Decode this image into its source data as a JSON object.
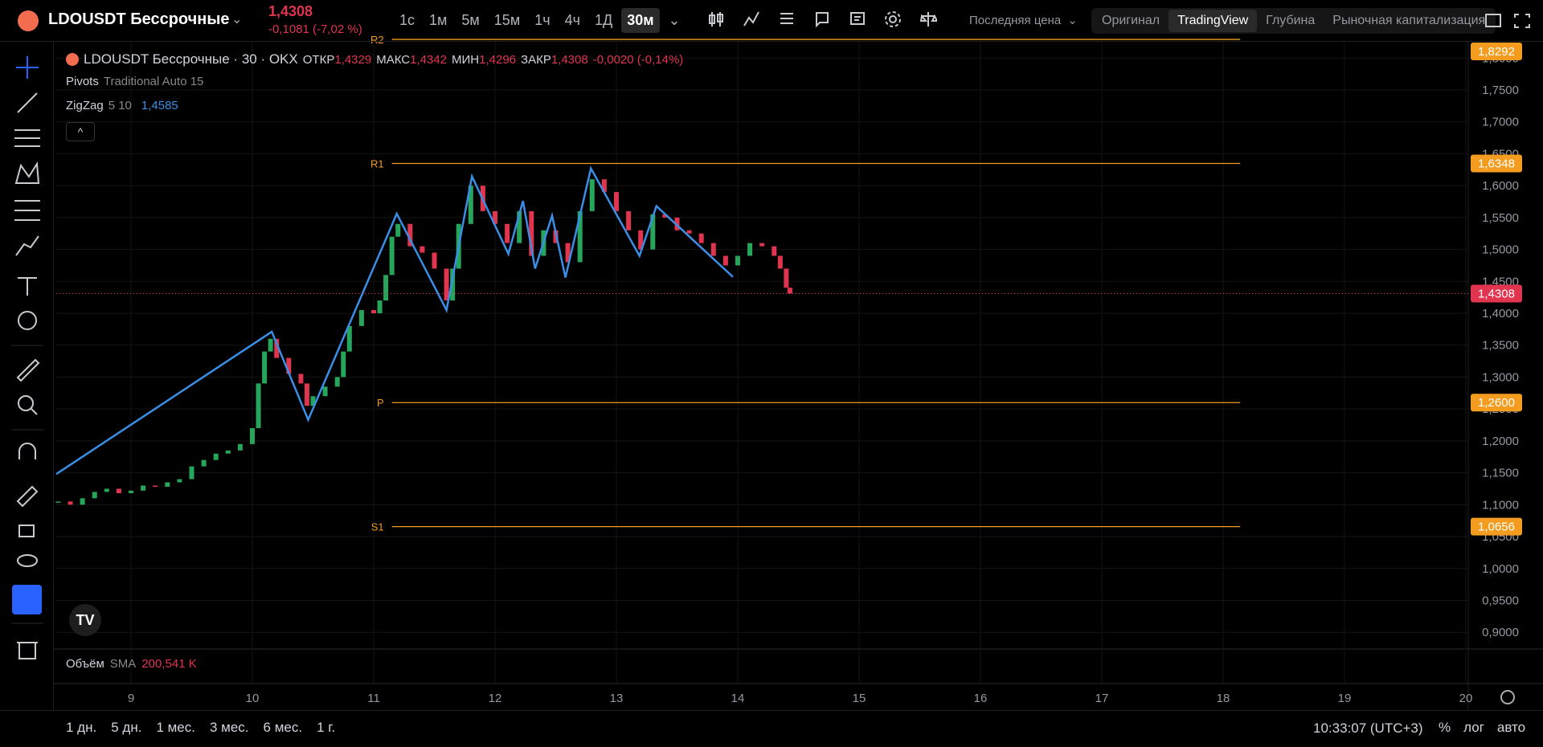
{
  "header": {
    "symbol": "LDOUSDT Бессрочные",
    "price": "1,4308",
    "change": "-0,1081 (-7,02 %)",
    "intervals": [
      "1с",
      "1м",
      "5м",
      "15м",
      "1ч",
      "4ч",
      "1Д",
      "30м"
    ],
    "active_interval": "30м",
    "price_type": "Последняя цена",
    "views": [
      "Оригинал",
      "TradingView",
      "Глубина",
      "Рыночная капитализация"
    ],
    "active_view": "TradingView"
  },
  "legend": {
    "title": "LDOUSDT Бессрочные · 30 · OKX",
    "ohlc": [
      {
        "label": "ОТКР",
        "value": "1,4329"
      },
      {
        "label": "МАКС",
        "value": "1,4342"
      },
      {
        "label": "МИН",
        "value": "1,4296"
      },
      {
        "label": "ЗАКР",
        "value": "1,4308"
      }
    ],
    "change": "-0,0020 (-0,14%)"
  },
  "indicators": [
    {
      "name": "Pivots",
      "params": "Traditional Auto 15"
    },
    {
      "name": "ZigZag",
      "params": "5 10",
      "value": "1,4585"
    }
  ],
  "chart": {
    "ylim": [
      0.8738,
      1.8255
    ],
    "xlim": [
      8.384,
      20.02
    ],
    "yticks": [
      {
        "value": 0.9,
        "label": "0,9000"
      },
      {
        "value": 0.95,
        "label": "0,9500"
      },
      {
        "value": 1.0,
        "label": "1,0000"
      },
      {
        "value": 1.05,
        "label": "1,0500"
      },
      {
        "value": 1.1,
        "label": "1,1000"
      },
      {
        "value": 1.15,
        "label": "1,1500"
      },
      {
        "value": 1.2,
        "label": "1,2000"
      },
      {
        "value": 1.25,
        "label": "1,2500"
      },
      {
        "value": 1.3,
        "label": "1,3000"
      },
      {
        "value": 1.35,
        "label": "1,3500"
      },
      {
        "value": 1.4,
        "label": "1,4000"
      },
      {
        "value": 1.45,
        "label": "1,4500"
      },
      {
        "value": 1.5,
        "label": "1,5000"
      },
      {
        "value": 1.55,
        "label": "1,5500"
      },
      {
        "value": 1.6,
        "label": "1,6000"
      },
      {
        "value": 1.65,
        "label": "1,6500"
      },
      {
        "value": 1.7,
        "label": "1,7000"
      },
      {
        "value": 1.75,
        "label": "1,7500"
      },
      {
        "value": 1.8,
        "label": "1,8000"
      }
    ],
    "xticks": [
      9,
      10,
      11,
      12,
      13,
      14,
      15,
      16,
      17,
      18,
      19,
      20
    ],
    "pivots": [
      {
        "name": "R2",
        "value": 1.8292,
        "label": "1,8292"
      },
      {
        "name": "R1",
        "value": 1.6348,
        "label": "1,6348"
      },
      {
        "name": "P",
        "value": 1.26,
        "label": "1,2600"
      },
      {
        "name": "S1",
        "value": 1.0656,
        "label": "1,0656"
      }
    ],
    "pivot_range": [
      11.15,
      18.14
    ],
    "pivot_color": "#f39c1f",
    "zigzag": {
      "color": "#3a8ee6",
      "x": [
        8.384,
        10.16,
        10.46,
        11.19,
        11.6,
        11.81,
        12.11,
        12.23,
        12.33,
        12.47,
        12.58,
        12.79,
        13.19,
        13.33,
        13.96
      ],
      "y": [
        1.148,
        1.371,
        1.233,
        1.556,
        1.405,
        1.6145,
        1.493,
        1.576,
        1.47,
        1.553,
        1.456,
        1.627,
        1.49,
        1.568,
        1.457
      ]
    },
    "candles": {
      "up_color": "#26a65b",
      "down_color": "#e0344f",
      "x": [
        8.4,
        8.5,
        8.6,
        8.7,
        8.8,
        8.9,
        9.0,
        9.1,
        9.2,
        9.3,
        9.4,
        9.5,
        9.6,
        9.7,
        9.8,
        9.9,
        10.0,
        10.05,
        10.1,
        10.15,
        10.2,
        10.3,
        10.4,
        10.45,
        10.5,
        10.6,
        10.7,
        10.75,
        10.8,
        10.9,
        11.0,
        11.05,
        11.1,
        11.15,
        11.2,
        11.3,
        11.4,
        11.5,
        11.6,
        11.65,
        11.7,
        11.8,
        11.9,
        12.0,
        12.1,
        12.2,
        12.3,
        12.4,
        12.5,
        12.6,
        12.7,
        12.8,
        12.9,
        13.0,
        13.1,
        13.2,
        13.3,
        13.4,
        13.5,
        13.6,
        13.7,
        13.8,
        13.9,
        14.0,
        14.1,
        14.2,
        14.3,
        14.35,
        14.4,
        14.43
      ],
      "closes": [
        1.105,
        1.1,
        1.11,
        1.12,
        1.125,
        1.118,
        1.122,
        1.13,
        1.128,
        1.135,
        1.14,
        1.16,
        1.17,
        1.18,
        1.185,
        1.195,
        1.22,
        1.29,
        1.34,
        1.36,
        1.33,
        1.305,
        1.29,
        1.255,
        1.27,
        1.285,
        1.3,
        1.34,
        1.38,
        1.405,
        1.4,
        1.42,
        1.46,
        1.52,
        1.54,
        1.505,
        1.495,
        1.47,
        1.42,
        1.47,
        1.54,
        1.6,
        1.56,
        1.54,
        1.51,
        1.56,
        1.49,
        1.53,
        1.51,
        1.48,
        1.56,
        1.61,
        1.59,
        1.56,
        1.53,
        1.5,
        1.555,
        1.55,
        1.53,
        1.525,
        1.51,
        1.49,
        1.475,
        1.49,
        1.51,
        1.505,
        1.49,
        1.47,
        1.44,
        1.4308
      ]
    },
    "last_price": {
      "value": 1.4308,
      "label": "1,4308",
      "color": "#e0344f"
    }
  },
  "volume": {
    "name": "Объём",
    "sma": "SMA",
    "value": "200,541 K"
  },
  "footer": {
    "ranges": [
      "1 дн.",
      "5 дн.",
      "1 мес.",
      "3 мес.",
      "6 мес.",
      "1 г."
    ],
    "time": "10:33:07 (UTC+3)",
    "toggles": [
      "%",
      "лог",
      "авто"
    ]
  }
}
